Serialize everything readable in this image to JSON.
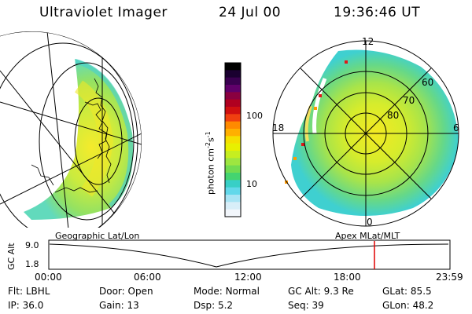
{
  "header": {
    "instrument": "Ultraviolet Imager",
    "date": "24 Jul 00",
    "time": "19:36:46 UT"
  },
  "left_panel": {
    "caption": "Geographic Lat/Lon"
  },
  "right_panel": {
    "caption": "Apex MLat/MLT",
    "mlt_labels": [
      "12",
      "18",
      "6",
      "0"
    ],
    "lat_labels": [
      "60",
      "70",
      "80"
    ]
  },
  "colorbar": {
    "label": "photon cm",
    "label_exp1": "-2",
    "label_mid": "s",
    "label_exp2": "-1",
    "ticks": [
      "100",
      "10"
    ],
    "colors": [
      "#000000",
      "#1a0030",
      "#3a0050",
      "#60006a",
      "#8a0040",
      "#b00020",
      "#d01010",
      "#f04010",
      "#ff8a00",
      "#ffb000",
      "#f5e000",
      "#e8f000",
      "#c6ee20",
      "#9ee640",
      "#72dc50",
      "#44d470",
      "#38cfc6",
      "#62d8ea",
      "#a8e4f4",
      "#d8eef8",
      "#f2f6fb"
    ]
  },
  "timeline": {
    "axis_label": "GC Alt",
    "y_ticks": [
      "9.0",
      "1.8"
    ],
    "x_ticks": [
      "00:00",
      "06:00",
      "12:00",
      "18:00",
      "23:59"
    ],
    "marker_color": "#e00000"
  },
  "info": {
    "row1": [
      {
        "key": "Flt:",
        "val": "LBHL"
      },
      {
        "key": "Door:",
        "val": "Open"
      },
      {
        "key": "Mode:",
        "val": "Normal"
      },
      {
        "key": "GC Alt:",
        "val": "9.3 Re"
      },
      {
        "key": "GLat:",
        "val": "85.5"
      }
    ],
    "row2": [
      {
        "key": "IP:",
        "val": "36.0"
      },
      {
        "key": "Gain:",
        "val": "13"
      },
      {
        "key": "Dsp:",
        "val": "5.2"
      },
      {
        "key": "Seq:",
        "val": "39"
      },
      {
        "key": "GLon:",
        "val": "48.2"
      }
    ]
  }
}
